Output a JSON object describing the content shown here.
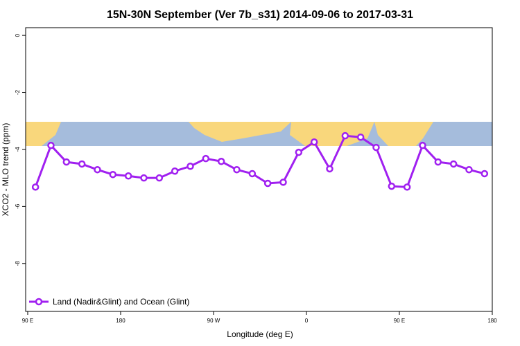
{
  "chart_data": {
    "type": "line",
    "title": "15N-30N September (Ver 7b_s31)   2014-09-06 to 2017-03-31",
    "x_label": "Longitude (deg E)",
    "y_label": "XCO2 - MLO trend (ppm)",
    "x": [
      97.5,
      112.5,
      127.5,
      142.5,
      157.5,
      172.5,
      187.5,
      202.5,
      217.5,
      232.5,
      247.5,
      262.5,
      277.5,
      292.5,
      307.5,
      322.5,
      337.5,
      352.5,
      367.5,
      382.5,
      397.5,
      412.5,
      427.5,
      442.5,
      457.5,
      472.5,
      487.5,
      502.5,
      517.5,
      532.5
    ],
    "series": [
      {
        "name": "Land (Nadir&Glint) and Ocean (Glint)",
        "color": "#a020f0",
        "values": [
          -5.32,
          -3.86,
          -4.44,
          -4.51,
          -4.71,
          -4.88,
          -4.93,
          -5.0,
          -5.0,
          -4.76,
          -4.59,
          -4.32,
          -4.42,
          -4.71,
          -4.85,
          -5.19,
          -5.15,
          -4.1,
          -3.74,
          -4.68,
          -3.52,
          -3.57,
          -3.93,
          -5.29,
          -5.32,
          -3.86,
          -4.44,
          -4.51,
          -4.71,
          -4.85
        ]
      }
    ],
    "xlim": [
      88,
      540
    ],
    "xticks": [
      {
        "value": 90,
        "label": "90 E"
      },
      180,
      {
        "value": 270,
        "label": "90 W"
      },
      {
        "value": 360,
        "label": "0"
      },
      {
        "value": 450,
        "label": "90 E"
      },
      {
        "value": 540,
        "label": "180"
      }
    ],
    "ylim": [
      -9.68,
      0.27
    ],
    "yticks": [
      0,
      -2,
      -4,
      -6,
      -8
    ],
    "legend": "bottom-left"
  }
}
